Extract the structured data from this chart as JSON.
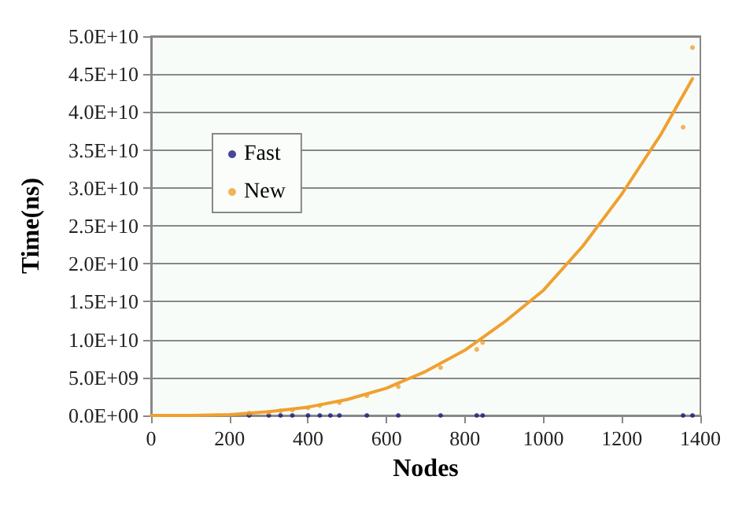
{
  "chart_data": {
    "type": "scatter",
    "xlabel": "Nodes",
    "ylabel": "Time(ns)",
    "xlim": [
      0,
      1400
    ],
    "xticks": [
      0,
      200,
      400,
      600,
      800,
      1000,
      1200,
      1400
    ],
    "ylim": [
      0,
      50000000000
    ],
    "yticks": [
      {
        "value": 0,
        "label": "0.0E+00"
      },
      {
        "value": 5000000000,
        "label": "5.0E+09"
      },
      {
        "value": 10000000000,
        "label": "1.0E+10"
      },
      {
        "value": 15000000000,
        "label": "1.5E+10"
      },
      {
        "value": 20000000000,
        "label": "2.0E+10"
      },
      {
        "value": 25000000000,
        "label": "2.5E+10"
      },
      {
        "value": 30000000000,
        "label": "3.0E+10"
      },
      {
        "value": 35000000000,
        "label": "3.5E+10"
      },
      {
        "value": 40000000000,
        "label": "4.0E+10"
      },
      {
        "value": 45000000000,
        "label": "4.5E+10"
      },
      {
        "value": 50000000000,
        "label": "5.0E+10"
      }
    ],
    "grid": "y",
    "legend": "left",
    "marker": "circle",
    "series": [
      {
        "name": "Fast",
        "color": "#1a1a80",
        "x": [
          250,
          300,
          330,
          360,
          400,
          430,
          457,
          480,
          550,
          630,
          738,
          830,
          845,
          1356,
          1380
        ],
        "values": [
          0,
          0,
          0,
          0,
          0,
          0,
          0,
          0,
          0,
          0,
          0,
          0,
          0,
          0,
          0
        ]
      },
      {
        "name": "New",
        "color": "#f0a030",
        "x": [
          250,
          300,
          330,
          360,
          400,
          430,
          457,
          480,
          550,
          630,
          738,
          830,
          845,
          1356,
          1380
        ],
        "values": [
          300000000,
          400000000,
          600000000,
          700000000,
          1000000000,
          1300000000,
          null,
          1700000000,
          2600000000,
          3800000000,
          6300000000,
          8700000000,
          9600000000,
          38000000000,
          48500000000
        ]
      },
      {
        "type": "line",
        "marker": "none",
        "color": "#f0a030",
        "x": [
          0,
          100,
          200,
          300,
          400,
          500,
          600,
          700,
          800,
          900,
          1000,
          1100,
          1200,
          1300,
          1380
        ],
        "values": [
          0,
          0,
          100000000,
          500000000,
          1100000000,
          2100000000,
          3600000000,
          5800000000,
          8600000000,
          12300000000,
          16500000000,
          22300000000,
          29200000000,
          37100000000,
          44400000000
        ]
      }
    ]
  }
}
